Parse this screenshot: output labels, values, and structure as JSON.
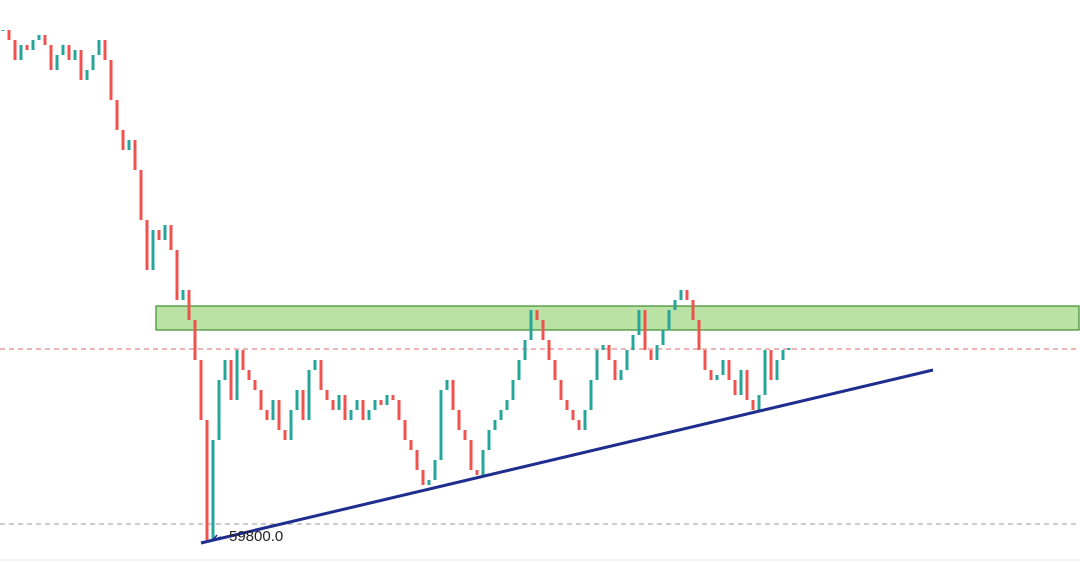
{
  "chart_data": {
    "type": "candlestick",
    "ylim": [
      59360,
      70600
    ],
    "up_color": "#26a69a",
    "down_color": "#ef5350",
    "values": [
      70000,
      69800,
      69400,
      69700,
      69600,
      69800,
      69900,
      69700,
      69200,
      69500,
      69700,
      69400,
      69600,
      69000,
      69200,
      69500,
      69800,
      69400,
      68600,
      68000,
      67600,
      67800,
      67200,
      66200,
      65200,
      66000,
      65800,
      66100,
      65600,
      64600,
      64800,
      64200,
      63400,
      62200,
      59800,
      61800,
      63000,
      63400,
      62600,
      63600,
      63200,
      63000,
      62800,
      62400,
      62200,
      62600,
      62000,
      61800,
      62400,
      62800,
      62200,
      63200,
      63400,
      62800,
      62600,
      62400,
      62700,
      62200,
      62400,
      62600,
      62200,
      62400,
      62600,
      62500,
      62700,
      62600,
      62200,
      61800,
      61600,
      61200,
      60900,
      61000,
      61400,
      62800,
      63000,
      62400,
      62000,
      61800,
      61200,
      61100,
      61600,
      62000,
      62200,
      62400,
      62600,
      63000,
      63400,
      63800,
      64400,
      64200,
      63800,
      63400,
      63000,
      62600,
      62400,
      62200,
      62000,
      62400,
      63000,
      63600,
      63700,
      63400,
      63000,
      63200,
      63600,
      63900,
      64400,
      63600,
      63400,
      63700,
      64000,
      64400,
      64600,
      64800,
      64600,
      64200,
      63600,
      63200,
      63000,
      63100,
      63400,
      63000,
      62700,
      63200,
      62600,
      62400,
      62700,
      63600,
      63000,
      63400,
      63600,
      63640
    ],
    "levels": [
      {
        "value": 63620,
        "color": "#e06666"
      },
      {
        "value": 60120,
        "color": "#9a9a9a"
      }
    ],
    "zone": {
      "from": 64000,
      "to": 64480,
      "start": 26,
      "color": "#b9e2a4",
      "border": "#3c8c2c"
    },
    "trendline": {
      "x": [
        33,
        155
      ],
      "values": [
        59740,
        63200
      ],
      "color": "#1f2d8f"
    },
    "annotation": {
      "index": 34,
      "value": 59800,
      "label": "59800.0"
    }
  }
}
